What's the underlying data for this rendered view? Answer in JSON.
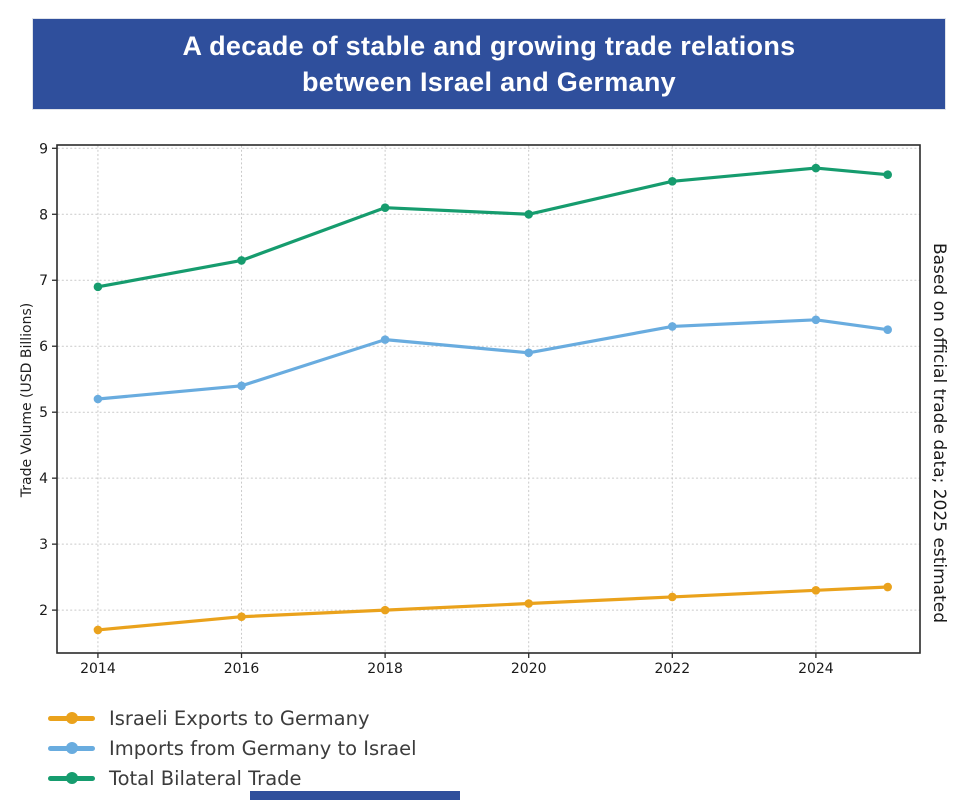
{
  "banner": {
    "title_line1": "A decade of stable and growing trade relations",
    "title_line2": "between Israel and Germany",
    "background": "#2F4F9C",
    "text_color": "#FFFFFF"
  },
  "chart_data": {
    "type": "line",
    "title": "A decade of stable and growing trade relations between Israel and Germany",
    "x": [
      2014,
      2016,
      2018,
      2020,
      2022,
      2024,
      2025
    ],
    "series": [
      {
        "name": "Israeli Exports to Germany",
        "color": "#EAA21C",
        "values": [
          1.7,
          1.9,
          2.0,
          2.1,
          2.2,
          2.3,
          2.35
        ]
      },
      {
        "name": "Imports from Germany to Israel",
        "color": "#69ACDF",
        "values": [
          5.2,
          5.4,
          6.1,
          5.9,
          6.3,
          6.4,
          6.25
        ]
      },
      {
        "name": "Total Bilateral Trade",
        "color": "#169C6E",
        "values": [
          6.9,
          7.3,
          8.1,
          8.0,
          8.5,
          8.7,
          8.6
        ]
      }
    ],
    "xlabel": "",
    "ylabel": "Trade Volume (USD Billions)",
    "annotation_right": "Based on official trade data; 2025 estimated",
    "yticks": [
      2,
      3,
      4,
      5,
      6,
      7,
      8,
      9
    ],
    "xticks": [
      2014,
      2016,
      2018,
      2020,
      2022,
      2024
    ],
    "ylim": [
      1.35,
      9.05
    ],
    "xlim": [
      2013.43,
      2025.45
    ],
    "grid": "dotted",
    "legend_position": "bottom-left",
    "marker": "circle"
  }
}
